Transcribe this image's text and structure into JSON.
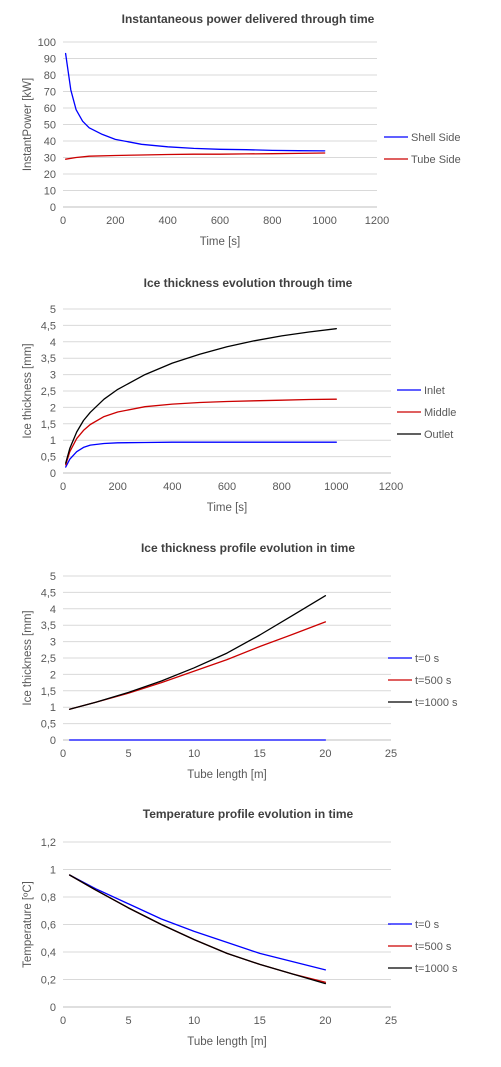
{
  "chart_data": [
    {
      "type": "line",
      "title": "Instantaneous power delivered through time",
      "xlabel": "Time [s]",
      "ylabel": "InstantPower [kW]",
      "xlim": [
        0,
        1200
      ],
      "ylim": [
        0,
        100
      ],
      "xticks": [
        0,
        200,
        400,
        600,
        800,
        1000,
        1200
      ],
      "yticks": [
        0,
        10,
        20,
        30,
        40,
        50,
        60,
        70,
        80,
        90,
        100
      ],
      "grid": true,
      "legend": "right",
      "series": [
        {
          "name": "Shell Side",
          "color": "#0000ff",
          "x": [
            10,
            20,
            30,
            50,
            75,
            100,
            150,
            200,
            250,
            300,
            400,
            500,
            600,
            700,
            800,
            900,
            1000
          ],
          "y": [
            93,
            82,
            71,
            59,
            52,
            48,
            44,
            41,
            39.5,
            38,
            36.5,
            35.5,
            35,
            34.7,
            34.3,
            34.1,
            34
          ]
        },
        {
          "name": "Tube Side",
          "color": "#cc0000",
          "x": [
            10,
            50,
            100,
            200,
            300,
            400,
            500,
            600,
            700,
            800,
            900,
            1000
          ],
          "y": [
            29,
            30,
            30.8,
            31.2,
            31.5,
            31.8,
            32,
            32,
            32.2,
            32.3,
            32.5,
            32.7
          ]
        }
      ]
    },
    {
      "type": "line",
      "title": "Ice thickness evolution through time",
      "xlabel": "Time [s]",
      "ylabel": "Ice thickness [mm]",
      "xlim": [
        0,
        1200
      ],
      "ylim": [
        0,
        5
      ],
      "xticks": [
        0,
        200,
        400,
        600,
        800,
        1000,
        1200
      ],
      "yticks": [
        0,
        0.5,
        1,
        1.5,
        2,
        2.5,
        3,
        3.5,
        4,
        4.5,
        5
      ],
      "yticklabels": [
        "0",
        "0,5",
        "1",
        "1,5",
        "2",
        "2,5",
        "3",
        "3,5",
        "4",
        "4,5",
        "5"
      ],
      "grid": true,
      "legend": "right",
      "series": [
        {
          "name": "Inlet",
          "color": "#0000ff",
          "x": [
            10,
            25,
            50,
            75,
            100,
            150,
            200,
            300,
            400,
            600,
            800,
            1000
          ],
          "y": [
            0.18,
            0.42,
            0.65,
            0.78,
            0.85,
            0.9,
            0.92,
            0.93,
            0.94,
            0.94,
            0.94,
            0.94
          ]
        },
        {
          "name": "Middle",
          "color": "#cc0000",
          "x": [
            10,
            25,
            50,
            75,
            100,
            150,
            200,
            300,
            400,
            500,
            600,
            700,
            800,
            900,
            1000
          ],
          "y": [
            0.25,
            0.65,
            1.05,
            1.3,
            1.48,
            1.72,
            1.86,
            2.02,
            2.1,
            2.15,
            2.18,
            2.2,
            2.22,
            2.24,
            2.25
          ]
        },
        {
          "name": "Outlet",
          "color": "#000000",
          "x": [
            10,
            25,
            50,
            75,
            100,
            150,
            200,
            300,
            400,
            500,
            600,
            700,
            800,
            900,
            1000
          ],
          "y": [
            0.3,
            0.75,
            1.25,
            1.6,
            1.85,
            2.25,
            2.55,
            3.0,
            3.35,
            3.62,
            3.85,
            4.03,
            4.18,
            4.3,
            4.4
          ]
        }
      ]
    },
    {
      "type": "line",
      "title": "Ice thickness profile evolution in time",
      "xlabel": "Tube length [m]",
      "ylabel": "Ice thickness [mm]",
      "xlim": [
        0,
        25
      ],
      "ylim": [
        0,
        5
      ],
      "xticks": [
        0,
        5,
        10,
        15,
        20,
        25
      ],
      "yticks": [
        0,
        0.5,
        1,
        1.5,
        2,
        2.5,
        3,
        3.5,
        4,
        4.5,
        5
      ],
      "yticklabels": [
        "0",
        "0,5",
        "1",
        "1,5",
        "2",
        "2,5",
        "3",
        "3,5",
        "4",
        "4,5",
        "5"
      ],
      "grid": true,
      "legend": "right",
      "series": [
        {
          "name": "t=0 s",
          "color": "#0000ff",
          "x": [
            0.5,
            20
          ],
          "y": [
            0,
            0
          ]
        },
        {
          "name": "t=500 s",
          "color": "#cc0000",
          "x": [
            0.5,
            2.5,
            5,
            7.5,
            10,
            12.5,
            15,
            17.5,
            20
          ],
          "y": [
            0.94,
            1.15,
            1.43,
            1.75,
            2.1,
            2.45,
            2.85,
            3.22,
            3.6
          ]
        },
        {
          "name": "t=1000 s",
          "color": "#000000",
          "x": [
            0.5,
            2.5,
            5,
            7.5,
            10,
            12.5,
            15,
            17.5,
            20
          ],
          "y": [
            0.94,
            1.15,
            1.45,
            1.8,
            2.2,
            2.65,
            3.2,
            3.8,
            4.4
          ]
        }
      ]
    },
    {
      "type": "line",
      "title": "Temperature profile evolution in time",
      "xlabel": "Tube length [m]",
      "ylabel": "Temperature [ºC]",
      "xlim": [
        0,
        25
      ],
      "ylim": [
        0,
        1.2
      ],
      "xticks": [
        0,
        5,
        10,
        15,
        20,
        25
      ],
      "yticks": [
        0,
        0.2,
        0.4,
        0.6,
        0.8,
        1,
        1.2
      ],
      "yticklabels": [
        "0",
        "0,2",
        "0,4",
        "0,6",
        "0,8",
        "1",
        "1,2"
      ],
      "grid": true,
      "legend": "right",
      "series": [
        {
          "name": "t=0 s",
          "color": "#0000ff",
          "x": [
            0.5,
            2.5,
            5,
            7.5,
            10,
            12.5,
            15,
            17.5,
            20
          ],
          "y": [
            0.96,
            0.86,
            0.75,
            0.64,
            0.55,
            0.47,
            0.39,
            0.33,
            0.27
          ]
        },
        {
          "name": "t=500 s",
          "color": "#cc0000",
          "x": [
            0.5,
            2.5,
            5,
            7.5,
            10,
            12.5,
            15,
            17.5,
            20
          ],
          "y": [
            0.96,
            0.85,
            0.72,
            0.6,
            0.49,
            0.39,
            0.31,
            0.24,
            0.18
          ]
        },
        {
          "name": "t=1000 s",
          "color": "#000000",
          "x": [
            0.5,
            2.5,
            5,
            7.5,
            10,
            12.5,
            15,
            17.5,
            20
          ],
          "y": [
            0.96,
            0.85,
            0.72,
            0.6,
            0.49,
            0.39,
            0.31,
            0.24,
            0.17
          ]
        }
      ]
    }
  ]
}
